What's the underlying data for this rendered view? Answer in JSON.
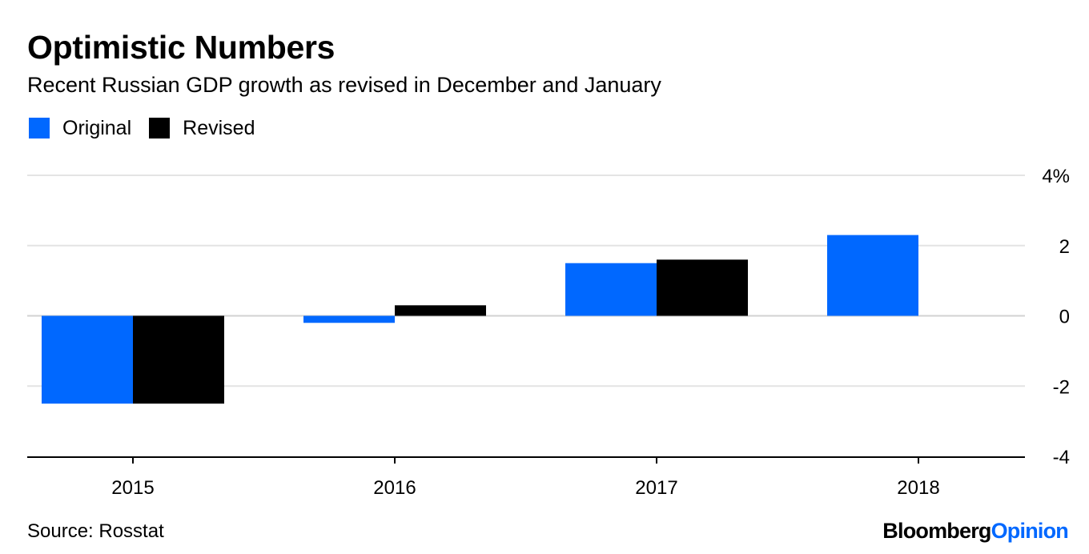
{
  "chart_data": {
    "type": "bar",
    "title": "Optimistic Numbers",
    "subtitle": "Recent Russian GDP growth as revised in December and January",
    "categories": [
      "2015",
      "2016",
      "2017",
      "2018"
    ],
    "series": [
      {
        "name": "Original",
        "color": "#0068ff",
        "values": [
          -2.5,
          -0.2,
          1.5,
          2.3
        ]
      },
      {
        "name": "Revised",
        "color": "#000000",
        "values": [
          -2.5,
          0.3,
          1.6,
          null
        ]
      }
    ],
    "ylim": [
      -4,
      4
    ],
    "yticks": [
      4,
      2,
      0,
      -2,
      -4
    ],
    "ytick_labels": [
      "4%",
      "2",
      "0",
      "-2",
      "-4"
    ],
    "grid": true,
    "legend_position": "top-left",
    "source": "Source: Rosstat"
  },
  "brand": {
    "part1": "Bloomberg",
    "part2": "Opinion"
  }
}
